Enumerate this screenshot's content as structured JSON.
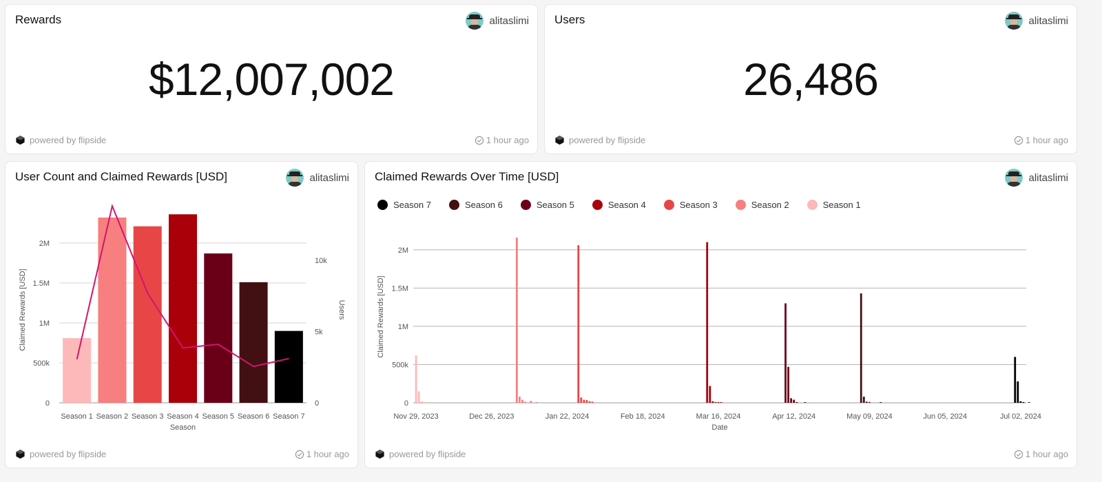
{
  "cards": {
    "rewards": {
      "title": "Rewards",
      "author": "alitaslimi",
      "value": "$12,007,002",
      "powered": "powered by flipside",
      "updated": "1 hour ago"
    },
    "users": {
      "title": "Users",
      "author": "alitaslimi",
      "value": "26,486",
      "powered": "powered by flipside",
      "updated": "1 hour ago"
    },
    "season_chart": {
      "title": "User Count and Claimed Rewards [USD]",
      "author": "alitaslimi",
      "powered": "powered by flipside",
      "updated": "1 hour ago"
    },
    "time_chart": {
      "title": "Claimed Rewards Over Time [USD]",
      "author": "alitaslimi",
      "powered": "powered by flipside",
      "updated": "1 hour ago"
    }
  },
  "icons": {
    "avatar": "avatar-icon",
    "logo": "flipside-logo-icon",
    "check": "check-circle-icon"
  },
  "chart_data": [
    {
      "type": "bar",
      "title": "User Count and Claimed Rewards [USD]",
      "xlabel": "Season",
      "ylabel": "Claimed Rewards [USD]",
      "y2label": "Users",
      "ylim": [
        0,
        2500000
      ],
      "y2lim": [
        0,
        14000
      ],
      "yticks": [
        0,
        500000,
        1000000,
        1500000,
        2000000
      ],
      "yticklabels": [
        "0",
        "500k",
        "1M",
        "1.5M",
        "2M"
      ],
      "y2ticks": [
        0,
        5000,
        10000
      ],
      "y2ticklabels": [
        "0",
        "5k",
        "10k"
      ],
      "categories": [
        "Season 1",
        "Season 2",
        "Season 3",
        "Season 4",
        "Season 5",
        "Season 6",
        "Season 7"
      ],
      "colors": [
        "#fdb9b9",
        "#f87f7f",
        "#e84646",
        "#a90009",
        "#6a0018",
        "#421012",
        "#000000"
      ],
      "series": [
        {
          "name": "Claimed Rewards",
          "type": "bar",
          "axis": "left",
          "values": [
            810000,
            2320000,
            2210000,
            2360000,
            1870000,
            1510000,
            900000
          ]
        },
        {
          "name": "Users",
          "type": "line",
          "axis": "right",
          "color": "#d0156e",
          "values": [
            3050,
            13800,
            7700,
            3850,
            4100,
            2550,
            3100
          ]
        }
      ],
      "grid": true
    },
    {
      "type": "bar",
      "title": "Claimed Rewards Over Time [USD]",
      "xlabel": "Date",
      "ylabel": "Claimed Rewards [USD]",
      "ylim": [
        0,
        2250000
      ],
      "yticks": [
        0,
        500000,
        1000000,
        1500000,
        2000000
      ],
      "yticklabels": [
        "0",
        "500k",
        "1M",
        "1.5M",
        "2M"
      ],
      "xlim": [
        "2023-11-28",
        "2024-07-04"
      ],
      "xticks": [
        "2023-11-29",
        "2023-12-26",
        "2024-01-22",
        "2024-02-18",
        "2024-03-16",
        "2024-04-12",
        "2024-05-09",
        "2024-06-05",
        "2024-07-02"
      ],
      "xticklabels": [
        "Nov 29, 2023",
        "Dec 26, 2023",
        "Jan 22, 2024",
        "Feb 18, 2024",
        "Mar 16, 2024",
        "Apr 12, 2024",
        "May 09, 2024",
        "Jun 05, 2024",
        "Jul 02, 2024"
      ],
      "legend_position": "top-left",
      "legend_order": [
        "Season 7",
        "Season 6",
        "Season 5",
        "Season 4",
        "Season 3",
        "Season 2",
        "Season 1"
      ],
      "grid": true,
      "series": [
        {
          "name": "Season 1",
          "color": "#fdb9b9",
          "points": [
            [
              "2023-11-29",
              620000
            ],
            [
              "2023-11-30",
              150000
            ],
            [
              "2023-12-01",
              20000
            ],
            [
              "2023-12-02",
              8000
            ],
            [
              "2023-12-03",
              5000
            ]
          ]
        },
        {
          "name": "Season 2",
          "color": "#f87f7f",
          "points": [
            [
              "2024-01-04",
              2160000
            ],
            [
              "2024-01-05",
              80000
            ],
            [
              "2024-01-06",
              40000
            ],
            [
              "2024-01-07",
              15000
            ],
            [
              "2024-01-09",
              25000
            ],
            [
              "2024-01-11",
              6000
            ]
          ]
        },
        {
          "name": "Season 3",
          "color": "#e84646",
          "points": [
            [
              "2024-01-26",
              2060000
            ],
            [
              "2024-01-27",
              70000
            ],
            [
              "2024-01-28",
              40000
            ],
            [
              "2024-01-29",
              35000
            ],
            [
              "2024-01-30",
              20000
            ],
            [
              "2024-01-31",
              15000
            ]
          ]
        },
        {
          "name": "Season 4",
          "color": "#a90009",
          "points": [
            [
              "2024-03-12",
              2100000
            ],
            [
              "2024-03-13",
              220000
            ],
            [
              "2024-03-14",
              20000
            ],
            [
              "2024-03-15",
              10000
            ],
            [
              "2024-03-16",
              8000
            ],
            [
              "2024-03-17",
              6000
            ]
          ]
        },
        {
          "name": "Season 5",
          "color": "#6a0018",
          "points": [
            [
              "2024-04-09",
              1300000
            ],
            [
              "2024-04-10",
              470000
            ],
            [
              "2024-04-11",
              60000
            ],
            [
              "2024-04-12",
              40000
            ],
            [
              "2024-04-13",
              10000
            ],
            [
              "2024-04-16",
              6000
            ]
          ]
        },
        {
          "name": "Season 6",
          "color": "#421012",
          "points": [
            [
              "2024-05-06",
              1430000
            ],
            [
              "2024-05-07",
              80000
            ],
            [
              "2024-05-08",
              15000
            ],
            [
              "2024-05-09",
              10000
            ],
            [
              "2024-05-13",
              6000
            ]
          ]
        },
        {
          "name": "Season 7",
          "color": "#000000",
          "points": [
            [
              "2024-06-30",
              600000
            ],
            [
              "2024-07-01",
              280000
            ],
            [
              "2024-07-02",
              20000
            ],
            [
              "2024-07-03",
              10000
            ],
            [
              "2024-07-05",
              8000
            ]
          ]
        }
      ]
    }
  ]
}
